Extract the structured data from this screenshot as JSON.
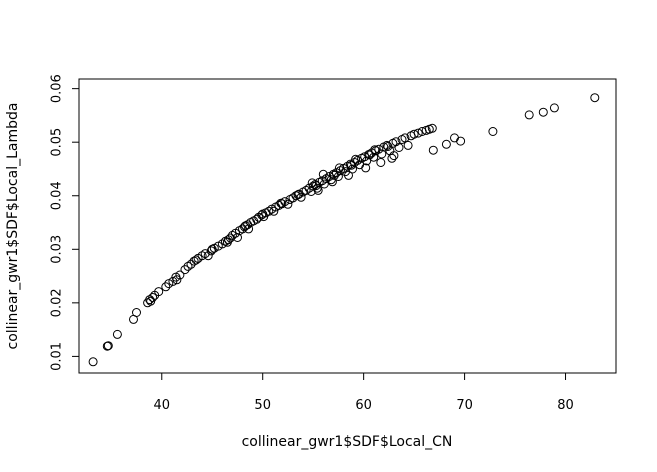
{
  "chart_data": {
    "type": "scatter",
    "title": "",
    "xlabel": "collinear_gwr1$SDF$Local_CN",
    "ylabel": "collinear_gwr1$SDF$Local_Lambda",
    "xlim": [
      31.8,
      85.0
    ],
    "ylim": [
      0.0069,
      0.0618
    ],
    "x_ticks": [
      40,
      50,
      60,
      70,
      80
    ],
    "y_ticks": [
      0.01,
      0.02,
      0.03,
      0.04,
      0.05,
      0.06
    ],
    "x_tick_labels": [
      "40",
      "50",
      "60",
      "70",
      "80"
    ],
    "y_tick_labels": [
      "0.01",
      "0.02",
      "0.03",
      "0.04",
      "0.05",
      "0.06"
    ],
    "grid": false,
    "marker": "open-circle",
    "colors": {
      "points": "#000000",
      "frame": "#000000"
    },
    "points": [
      [
        33.2,
        0.009
      ],
      [
        34.6,
        0.0119
      ],
      [
        34.7,
        0.012
      ],
      [
        35.6,
        0.0141
      ],
      [
        37.2,
        0.0169
      ],
      [
        37.5,
        0.0182
      ],
      [
        38.6,
        0.02
      ],
      [
        38.8,
        0.0206
      ],
      [
        38.9,
        0.0203
      ],
      [
        39.1,
        0.021
      ],
      [
        39.3,
        0.0214
      ],
      [
        39.7,
        0.0221
      ],
      [
        40.4,
        0.023
      ],
      [
        40.7,
        0.0236
      ],
      [
        41.1,
        0.024
      ],
      [
        41.4,
        0.0248
      ],
      [
        41.5,
        0.0243
      ],
      [
        41.8,
        0.0252
      ],
      [
        42.3,
        0.0262
      ],
      [
        42.6,
        0.0268
      ],
      [
        42.9,
        0.0272
      ],
      [
        43.2,
        0.0278
      ],
      [
        43.6,
        0.0283
      ],
      [
        44.0,
        0.0288
      ],
      [
        44.3,
        0.0292
      ],
      [
        44.6,
        0.0288
      ],
      [
        44.9,
        0.0297
      ],
      [
        45.2,
        0.0302
      ],
      [
        45.6,
        0.0306
      ],
      [
        46.0,
        0.031
      ],
      [
        46.3,
        0.0315
      ],
      [
        46.5,
        0.0313
      ],
      [
        46.8,
        0.0321
      ],
      [
        47.0,
        0.0326
      ],
      [
        47.3,
        0.033
      ],
      [
        47.5,
        0.0322
      ],
      [
        47.7,
        0.0335
      ],
      [
        48.0,
        0.0338
      ],
      [
        48.2,
        0.0342
      ],
      [
        48.5,
        0.0346
      ],
      [
        48.6,
        0.0338
      ],
      [
        48.8,
        0.035
      ],
      [
        49.1,
        0.0353
      ],
      [
        49.4,
        0.0356
      ],
      [
        49.6,
        0.036
      ],
      [
        49.9,
        0.0364
      ],
      [
        50.1,
        0.0361
      ],
      [
        50.3,
        0.0368
      ],
      [
        50.6,
        0.0371
      ],
      [
        50.9,
        0.0375
      ],
      [
        51.1,
        0.0371
      ],
      [
        51.3,
        0.0379
      ],
      [
        51.6,
        0.0382
      ],
      [
        51.9,
        0.0385
      ],
      [
        52.2,
        0.0389
      ],
      [
        52.5,
        0.0384
      ],
      [
        52.7,
        0.0393
      ],
      [
        53.0,
        0.0396
      ],
      [
        53.3,
        0.04
      ],
      [
        53.6,
        0.0403
      ],
      [
        53.8,
        0.0397
      ],
      [
        54.0,
        0.0407
      ],
      [
        54.3,
        0.041
      ],
      [
        54.6,
        0.0414
      ],
      [
        54.8,
        0.0408
      ],
      [
        55.0,
        0.0418
      ],
      [
        55.2,
        0.0421
      ],
      [
        55.4,
        0.0414
      ],
      [
        55.6,
        0.0425
      ],
      [
        55.9,
        0.0428
      ],
      [
        56.1,
        0.0422
      ],
      [
        56.3,
        0.0432
      ],
      [
        56.6,
        0.0436
      ],
      [
        56.8,
        0.043
      ],
      [
        57.0,
        0.044
      ],
      [
        57.3,
        0.0443
      ],
      [
        57.5,
        0.0436
      ],
      [
        57.7,
        0.0447
      ],
      [
        58.0,
        0.0451
      ],
      [
        58.2,
        0.0445
      ],
      [
        58.4,
        0.0455
      ],
      [
        58.7,
        0.0459
      ],
      [
        58.9,
        0.045
      ],
      [
        59.1,
        0.0462
      ],
      [
        59.4,
        0.0466
      ],
      [
        59.6,
        0.0458
      ],
      [
        59.8,
        0.047
      ],
      [
        60.1,
        0.0473
      ],
      [
        60.3,
        0.0465
      ],
      [
        60.5,
        0.0477
      ],
      [
        60.8,
        0.048
      ],
      [
        61.0,
        0.0472
      ],
      [
        61.2,
        0.0484
      ],
      [
        61.5,
        0.0487
      ],
      [
        61.8,
        0.0478
      ],
      [
        62.0,
        0.0491
      ],
      [
        62.3,
        0.0494
      ],
      [
        62.6,
        0.0484
      ],
      [
        62.9,
        0.0498
      ],
      [
        63.2,
        0.0501
      ],
      [
        63.5,
        0.049
      ],
      [
        63.8,
        0.0505
      ],
      [
        64.1,
        0.0508
      ],
      [
        64.4,
        0.0494
      ],
      [
        64.7,
        0.0512
      ],
      [
        65.0,
        0.0515
      ],
      [
        65.4,
        0.0517
      ],
      [
        65.8,
        0.052
      ],
      [
        66.2,
        0.0522
      ],
      [
        66.5,
        0.0524
      ],
      [
        66.8,
        0.0526
      ],
      [
        66.9,
        0.0485
      ],
      [
        68.2,
        0.0496
      ],
      [
        69.0,
        0.0508
      ],
      [
        69.6,
        0.0502
      ],
      [
        72.8,
        0.052
      ],
      [
        76.4,
        0.0551
      ],
      [
        77.8,
        0.0556
      ],
      [
        78.9,
        0.0564
      ],
      [
        82.9,
        0.0583
      ],
      [
        43.4,
        0.028
      ],
      [
        45.0,
        0.03
      ],
      [
        46.6,
        0.0318
      ],
      [
        48.3,
        0.0344
      ],
      [
        50.0,
        0.0366
      ],
      [
        51.8,
        0.0386
      ],
      [
        53.5,
        0.0402
      ],
      [
        55.3,
        0.0419
      ],
      [
        57.1,
        0.0438
      ],
      [
        58.8,
        0.0457
      ],
      [
        60.6,
        0.0476
      ],
      [
        62.4,
        0.0492
      ],
      [
        54.9,
        0.0424
      ],
      [
        56.0,
        0.044
      ],
      [
        57.6,
        0.0452
      ],
      [
        59.2,
        0.0468
      ],
      [
        61.1,
        0.0486
      ],
      [
        62.8,
        0.047
      ],
      [
        63.0,
        0.0475
      ],
      [
        61.7,
        0.0462
      ],
      [
        60.2,
        0.0452
      ],
      [
        58.5,
        0.0438
      ],
      [
        56.9,
        0.0426
      ],
      [
        55.5,
        0.041
      ]
    ]
  }
}
